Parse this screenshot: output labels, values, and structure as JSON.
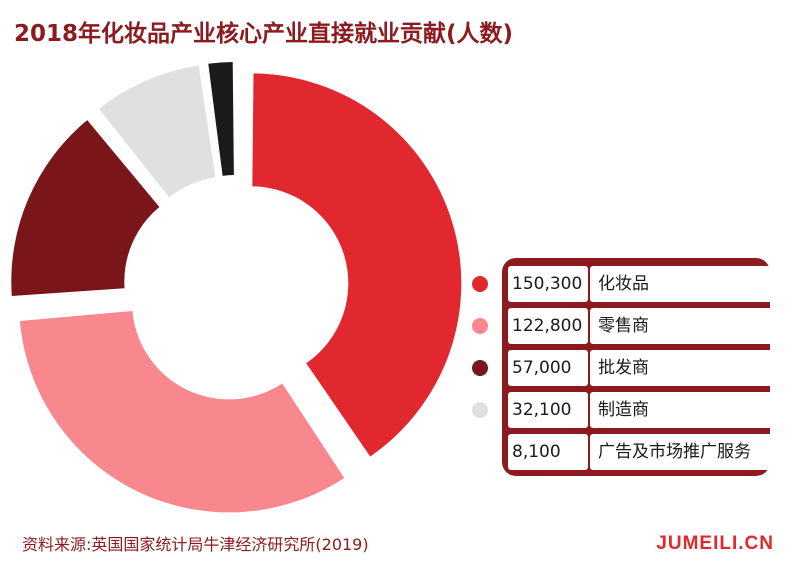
{
  "chart_data": {
    "type": "pie",
    "title": "2018年化妆品产业核心产业直接就业贡献(人数)",
    "categories": [
      "化妆品",
      "零售商",
      "批发商",
      "制造商",
      "广告及市场推广服务"
    ],
    "values": [
      150300,
      122800,
      57000,
      32100,
      8100
    ],
    "value_labels": [
      "150,300",
      "122,800",
      "57,000",
      "32,100",
      "8,100"
    ],
    "colors": [
      "#e1282f",
      "#f8888e",
      "#7a1519",
      "#e0e0e0",
      "#1a1a1a"
    ],
    "legend_position": "right"
  },
  "footer": {
    "source": "资料来源:英国国家统计局牛津经济研究所(2019)",
    "brand": "JUMEILI.CN"
  }
}
